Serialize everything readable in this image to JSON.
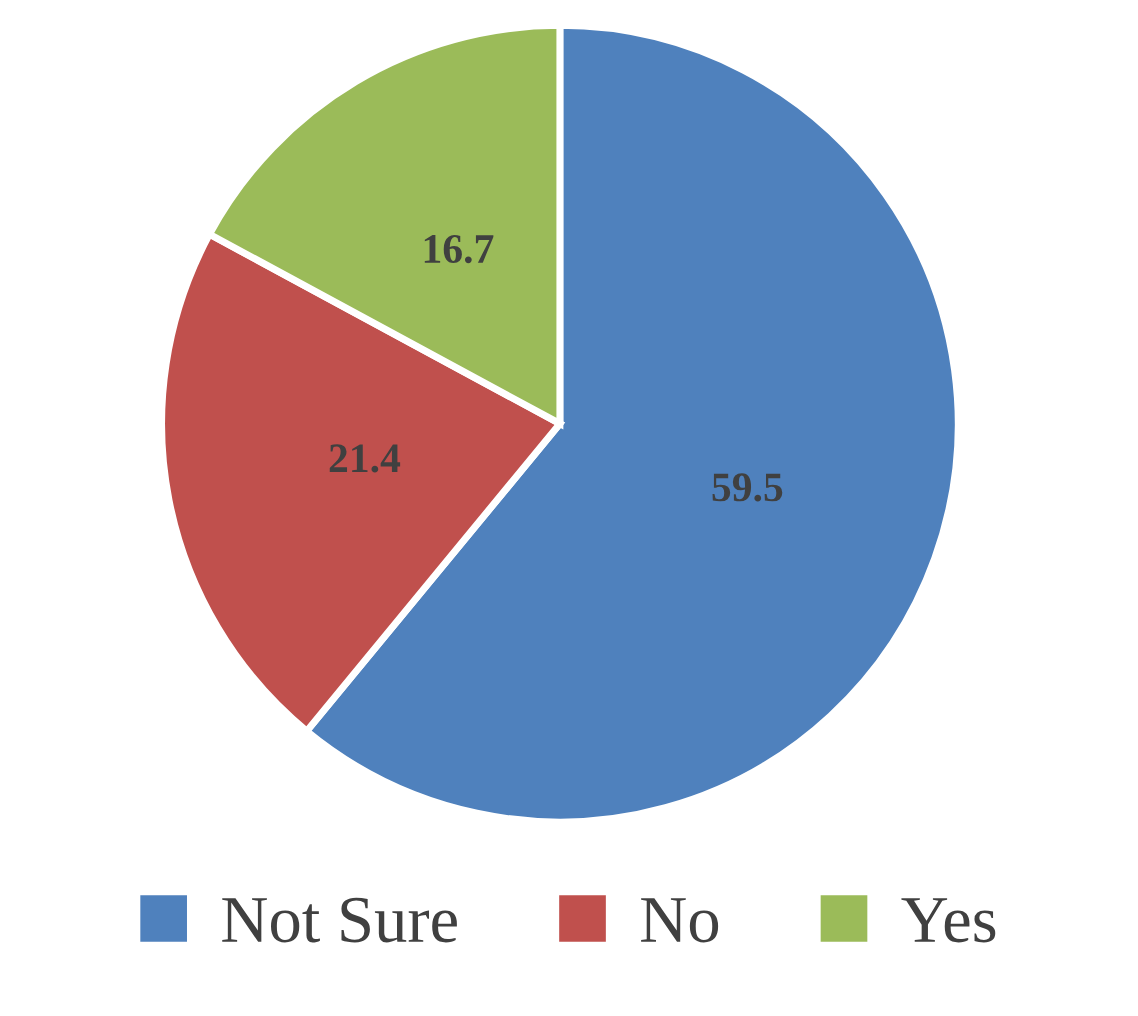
{
  "chart_data": {
    "type": "pie",
    "categories": [
      "Not Sure",
      "No",
      "Yes"
    ],
    "values": [
      59.5,
      21.4,
      16.7
    ],
    "colors": [
      "#4f81bd",
      "#c0504d",
      "#9bbb59"
    ],
    "data_labels": true,
    "legend": "bottom"
  }
}
